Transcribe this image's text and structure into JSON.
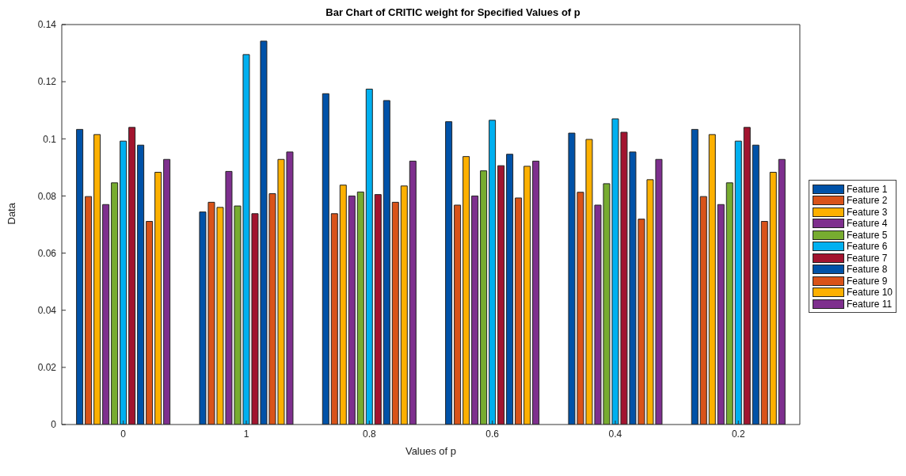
{
  "chart_data": {
    "type": "bar",
    "title": "Bar Chart of CRITIC weight for Specified Values of p",
    "xlabel": "Values of p",
    "ylabel": "Data",
    "categories": [
      "0",
      "1",
      "0.8",
      "0.6",
      "0.4",
      "0.2"
    ],
    "series": [
      {
        "name": "Feature 1",
        "color": "#0052a8",
        "values": [
          0.1033,
          0.0744,
          0.1158,
          0.106,
          0.102,
          0.1033
        ]
      },
      {
        "name": "Feature 2",
        "color": "#d95319",
        "values": [
          0.0798,
          0.0778,
          0.0738,
          0.0768,
          0.0813,
          0.0798
        ]
      },
      {
        "name": "Feature 3",
        "color": "#fdb000",
        "values": [
          0.1015,
          0.076,
          0.0838,
          0.0938,
          0.0998,
          0.1015
        ]
      },
      {
        "name": "Feature 4",
        "color": "#7e2f8e",
        "values": [
          0.077,
          0.0886,
          0.08,
          0.08,
          0.0768,
          0.077
        ]
      },
      {
        "name": "Feature 5",
        "color": "#77ac30",
        "values": [
          0.0846,
          0.0765,
          0.0814,
          0.0888,
          0.0843,
          0.0846
        ]
      },
      {
        "name": "Feature 6",
        "color": "#00b0f0",
        "values": [
          0.0992,
          0.1295,
          0.1174,
          0.1065,
          0.107,
          0.0992
        ]
      },
      {
        "name": "Feature 7",
        "color": "#a2142f",
        "values": [
          0.104,
          0.0738,
          0.0805,
          0.0906,
          0.1023,
          0.104
        ]
      },
      {
        "name": "Feature 8",
        "color": "#0052a8",
        "values": [
          0.0978,
          0.1342,
          0.1134,
          0.0946,
          0.0954,
          0.0978
        ]
      },
      {
        "name": "Feature 9",
        "color": "#d95319",
        "values": [
          0.0711,
          0.0808,
          0.0778,
          0.0793,
          0.0719,
          0.0711
        ]
      },
      {
        "name": "Feature 10",
        "color": "#fdb000",
        "values": [
          0.0883,
          0.0928,
          0.0835,
          0.0904,
          0.0857,
          0.0883
        ]
      },
      {
        "name": "Feature 11",
        "color": "#7e2f8e",
        "values": [
          0.0928,
          0.0954,
          0.0922,
          0.0922,
          0.0928,
          0.0928
        ]
      }
    ],
    "ylim": [
      0,
      0.14
    ],
    "yticks": [
      0,
      0.02,
      0.04,
      0.06,
      0.08,
      0.1,
      0.12,
      0.14
    ],
    "grid": false,
    "legend": "right"
  }
}
